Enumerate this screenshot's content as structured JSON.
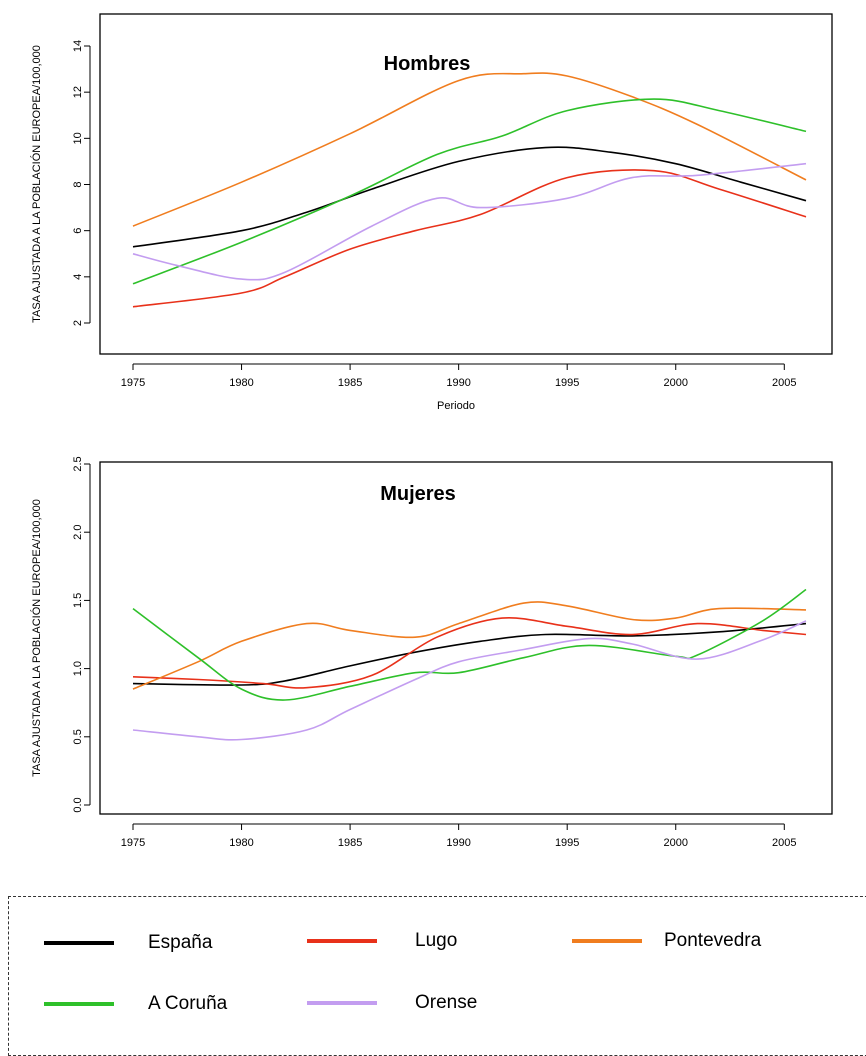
{
  "chart_data": [
    {
      "type": "line",
      "title": "Hombres",
      "xlabel": "Periodo",
      "ylabel": "TASA AJUSTADA A LA POBLACIÓN EUROPEA/100,000",
      "xlim": [
        1975,
        2006
      ],
      "ylim": [
        2,
        14
      ],
      "x_ticks": [
        "1975",
        "1980",
        "1985",
        "1990",
        "1995",
        "2000",
        "2005"
      ],
      "y_ticks": [
        "2",
        "4",
        "6",
        "8",
        "10",
        "12",
        "14"
      ],
      "grid": false,
      "series": [
        {
          "name": "España",
          "color": "#000000",
          "x": [
            1975,
            1980,
            1983,
            1986,
            1990,
            1994,
            1997,
            2000,
            2003,
            2006
          ],
          "y": [
            5.3,
            6.0,
            6.8,
            7.8,
            9.0,
            9.6,
            9.4,
            8.9,
            8.1,
            7.3
          ]
        },
        {
          "name": "Lugo",
          "color": "#e8311a",
          "x": [
            1975,
            1980,
            1982,
            1985,
            1988,
            1991,
            1995,
            1999,
            2002,
            2006
          ],
          "y": [
            2.7,
            3.3,
            4.0,
            5.2,
            6.0,
            6.7,
            8.3,
            8.6,
            7.8,
            6.6
          ]
        },
        {
          "name": "Pontevedra",
          "color": "#f07d1f",
          "x": [
            1975,
            1980,
            1985,
            1990,
            1993,
            1995,
            1998,
            2001,
            2006
          ],
          "y": [
            6.2,
            8.1,
            10.2,
            12.5,
            12.8,
            12.7,
            11.8,
            10.6,
            8.2
          ]
        },
        {
          "name": "A Coruña",
          "color": "#2ec02a",
          "x": [
            1975,
            1980,
            1985,
            1989,
            1992,
            1995,
            1999,
            2002,
            2006
          ],
          "y": [
            3.7,
            5.5,
            7.5,
            9.3,
            10.1,
            11.2,
            11.7,
            11.2,
            10.3
          ]
        },
        {
          "name": "Orense",
          "color": "#c39df0",
          "x": [
            1975,
            1977,
            1980,
            1982,
            1986,
            1989,
            1991,
            1995,
            1998,
            2001,
            2006
          ],
          "y": [
            5.0,
            4.5,
            3.9,
            4.2,
            6.2,
            7.4,
            7.0,
            7.4,
            8.3,
            8.4,
            8.9
          ]
        }
      ]
    },
    {
      "type": "line",
      "title": "Mujeres",
      "xlabel": "Periodo",
      "ylabel": "TASA AJUSTADA A LA POBLACIÓN EUROPEA/100,000",
      "xlim": [
        1975,
        2006
      ],
      "ylim": [
        0,
        2.5
      ],
      "x_ticks": [
        "1975",
        "1980",
        "1985",
        "1990",
        "1995",
        "2000",
        "2005"
      ],
      "y_ticks": [
        "0.0",
        "0.5",
        "1.0",
        "1.5",
        "2.0",
        "2.5"
      ],
      "grid": false,
      "series": [
        {
          "name": "España",
          "color": "#000000",
          "x": [
            1975,
            1980,
            1982,
            1985,
            1988,
            1991,
            1994,
            1998,
            2002,
            2006
          ],
          "y": [
            0.89,
            0.88,
            0.91,
            1.02,
            1.12,
            1.2,
            1.25,
            1.24,
            1.27,
            1.33
          ]
        },
        {
          "name": "Lugo",
          "color": "#e8311a",
          "x": [
            1975,
            1978,
            1981,
            1983,
            1986,
            1989,
            1992,
            1995,
            1998,
            2001,
            2004,
            2006
          ],
          "y": [
            0.94,
            0.92,
            0.89,
            0.86,
            0.95,
            1.23,
            1.37,
            1.31,
            1.25,
            1.33,
            1.28,
            1.25
          ]
        },
        {
          "name": "Pontevedra",
          "color": "#f07d1f",
          "x": [
            1975,
            1978,
            1980,
            1983,
            1985,
            1988,
            1990,
            1993,
            1995,
            1998,
            2000,
            2002,
            2006
          ],
          "y": [
            0.85,
            1.05,
            1.2,
            1.33,
            1.28,
            1.23,
            1.33,
            1.48,
            1.46,
            1.36,
            1.37,
            1.44,
            1.43
          ]
        },
        {
          "name": "A Coruña",
          "color": "#2ec02a",
          "x": [
            1975,
            1978,
            1980,
            1982,
            1985,
            1988,
            1990,
            1993,
            1996,
            2000,
            2001,
            2004,
            2006
          ],
          "y": [
            1.44,
            1.08,
            0.85,
            0.77,
            0.87,
            0.97,
            0.97,
            1.08,
            1.17,
            1.09,
            1.1,
            1.35,
            1.58
          ]
        },
        {
          "name": "Orense",
          "color": "#c39df0",
          "x": [
            1975,
            1978,
            1980,
            1983,
            1985,
            1988,
            1990,
            1993,
            1996,
            1998,
            2001,
            2004,
            2006
          ],
          "y": [
            0.55,
            0.5,
            0.48,
            0.55,
            0.7,
            0.92,
            1.05,
            1.14,
            1.22,
            1.18,
            1.07,
            1.21,
            1.35
          ]
        }
      ]
    }
  ],
  "legend": [
    {
      "name": "España",
      "color": "#000000"
    },
    {
      "name": "Lugo",
      "color": "#e8311a"
    },
    {
      "name": "Pontevedra",
      "color": "#f07d1f"
    },
    {
      "name": "A Coruña",
      "color": "#2ec02a"
    },
    {
      "name": "Orense",
      "color": "#c39df0"
    }
  ]
}
